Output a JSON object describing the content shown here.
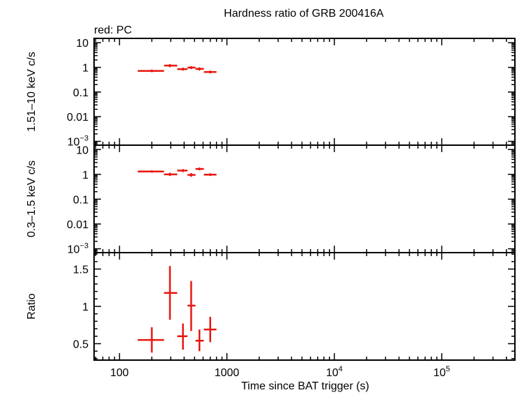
{
  "colors": {
    "data": "#e8150e",
    "axes": "#000000",
    "background": "#ffffff"
  },
  "chart_data": {
    "type": "scatter",
    "title": "Hardness ratio of GRB 200416A",
    "legend_text": "red: PC",
    "xlabel": "Time since BAT trigger (s)",
    "xscale": "log",
    "xlim": [
      58,
      480000
    ],
    "x_tick_labels": [
      {
        "value": 100,
        "label": "100"
      },
      {
        "value": 1000,
        "label": "1000"
      },
      {
        "value": 10000,
        "base": "10",
        "exp": "4"
      },
      {
        "value": 100000,
        "base": "10",
        "exp": "5"
      }
    ],
    "panels": [
      {
        "id": "hard",
        "ylabel": "1.51–10 keV c/s",
        "yscale": "log",
        "ylim": [
          0.0007,
          15
        ],
        "y_tick_labels": [
          {
            "value": 10,
            "label": "10"
          },
          {
            "value": 1,
            "label": "1"
          },
          {
            "value": 0.1,
            "label": "0.1"
          },
          {
            "value": 0.01,
            "label": "0.01"
          },
          {
            "value": 0.001,
            "base": "10",
            "exp": "−3"
          }
        ],
        "points": [
          {
            "x": 200,
            "xlo": 148,
            "xhi": 260,
            "y": 0.72,
            "ylo": 0.64,
            "yhi": 0.81
          },
          {
            "x": 295,
            "xlo": 260,
            "xhi": 345,
            "y": 1.18,
            "ylo": 1.02,
            "yhi": 1.36
          },
          {
            "x": 390,
            "xlo": 345,
            "xhi": 430,
            "y": 0.85,
            "ylo": 0.74,
            "yhi": 0.97
          },
          {
            "x": 465,
            "xlo": 430,
            "xhi": 510,
            "y": 0.98,
            "ylo": 0.85,
            "yhi": 1.12
          },
          {
            "x": 555,
            "xlo": 510,
            "xhi": 610,
            "y": 0.87,
            "ylo": 0.75,
            "yhi": 1.0
          },
          {
            "x": 700,
            "xlo": 610,
            "xhi": 800,
            "y": 0.65,
            "ylo": 0.57,
            "yhi": 0.74
          }
        ]
      },
      {
        "id": "soft",
        "ylabel": "0.3–1.5 keV c/s",
        "yscale": "log",
        "ylim": [
          0.0007,
          15
        ],
        "y_tick_labels": [
          {
            "value": 10,
            "label": "10"
          },
          {
            "value": 1,
            "label": "1"
          },
          {
            "value": 0.1,
            "label": "0.1"
          },
          {
            "value": 0.01,
            "label": "0.01"
          },
          {
            "value": 0.001,
            "base": "10",
            "exp": "−3"
          }
        ],
        "points": [
          {
            "x": 200,
            "xlo": 148,
            "xhi": 260,
            "y": 1.3,
            "ylo": 1.17,
            "yhi": 1.45
          },
          {
            "x": 295,
            "xlo": 260,
            "xhi": 345,
            "y": 1.0,
            "ylo": 0.86,
            "yhi": 1.16
          },
          {
            "x": 390,
            "xlo": 345,
            "xhi": 430,
            "y": 1.42,
            "ylo": 1.24,
            "yhi": 1.62
          },
          {
            "x": 465,
            "xlo": 430,
            "xhi": 510,
            "y": 0.95,
            "ylo": 0.8,
            "yhi": 1.12
          },
          {
            "x": 555,
            "xlo": 510,
            "xhi": 610,
            "y": 1.65,
            "ylo": 1.45,
            "yhi": 1.87
          },
          {
            "x": 700,
            "xlo": 610,
            "xhi": 800,
            "y": 0.97,
            "ylo": 0.86,
            "yhi": 1.1
          }
        ]
      },
      {
        "id": "ratio",
        "ylabel": "Ratio",
        "yscale": "linear",
        "ylim": [
          0.28,
          1.72
        ],
        "y_tick_labels": [
          {
            "value": 1.5,
            "label": "1.5"
          },
          {
            "value": 1,
            "label": "1"
          },
          {
            "value": 0.5,
            "label": "0.5"
          }
        ],
        "points": [
          {
            "x": 200,
            "xlo": 148,
            "xhi": 260,
            "y": 0.55,
            "ylo": 0.38,
            "yhi": 0.72
          },
          {
            "x": 295,
            "xlo": 260,
            "xhi": 345,
            "y": 1.18,
            "ylo": 0.82,
            "yhi": 1.54
          },
          {
            "x": 390,
            "xlo": 345,
            "xhi": 430,
            "y": 0.6,
            "ylo": 0.42,
            "yhi": 0.77
          },
          {
            "x": 465,
            "xlo": 430,
            "xhi": 510,
            "y": 1.01,
            "ylo": 0.67,
            "yhi": 1.34
          },
          {
            "x": 555,
            "xlo": 510,
            "xhi": 610,
            "y": 0.54,
            "ylo": 0.4,
            "yhi": 0.69
          },
          {
            "x": 700,
            "xlo": 610,
            "xhi": 800,
            "y": 0.69,
            "ylo": 0.52,
            "yhi": 0.86
          }
        ]
      }
    ]
  }
}
